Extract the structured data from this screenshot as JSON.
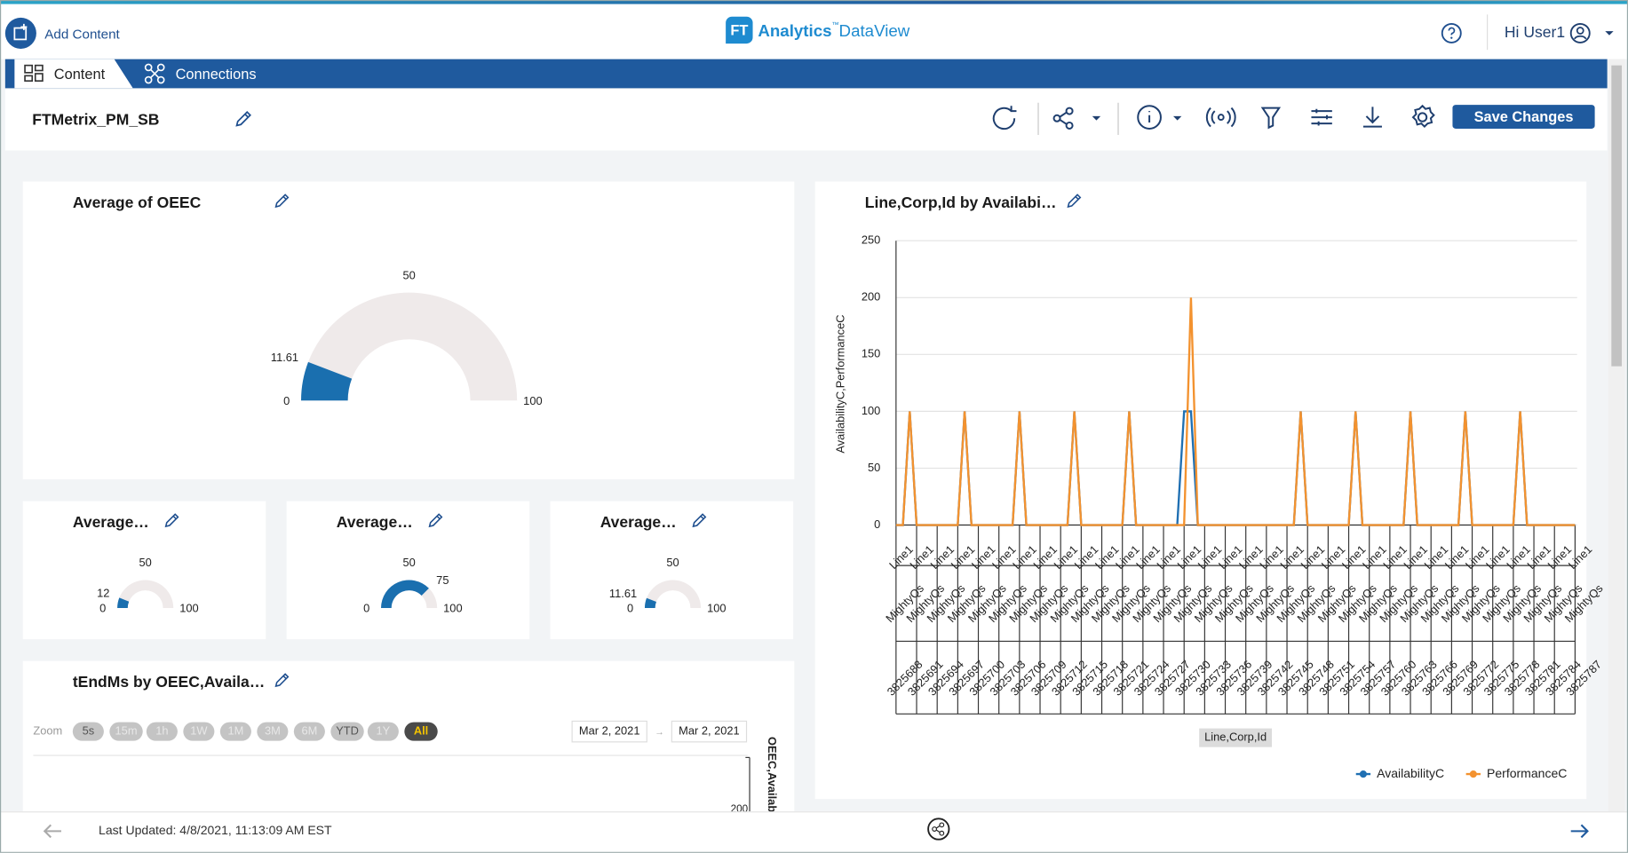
{
  "header": {
    "add_content": "Add Content",
    "logo_badge": "FT",
    "logo_brand": "Analytics",
    "logo_tm": "™",
    "logo_product": "DataView",
    "user_greeting": "Hi User1"
  },
  "tabs": [
    "Content",
    "Connections"
  ],
  "dashboard": {
    "title": "FTMetrix_PM_SB",
    "save_button": "Save Changes"
  },
  "gauges": [
    {
      "title": "Average of OEEC",
      "min": 0,
      "mid": 50,
      "max": 100,
      "value": 11.61,
      "color": "#1a6faf",
      "track_color": "#efeaea"
    },
    {
      "title": "Average…",
      "min": 0,
      "mid": 50,
      "max": 100,
      "value": 12,
      "color": "#1a6faf",
      "track_color": "#efeaea"
    },
    {
      "title": "Average…",
      "min": 0,
      "mid": 50,
      "max": 100,
      "value": 75,
      "color": "#1a6faf",
      "track_color": "#efeaea"
    },
    {
      "title": "Average…",
      "min": 0,
      "mid": 50,
      "max": 100,
      "value": 11.61,
      "color": "#1a6faf",
      "track_color": "#efeaea"
    }
  ],
  "chart_data": {
    "type": "line",
    "title": "Line,Corp,Id by Availabi…",
    "x_label": "Line,Corp,Id",
    "y_label": "AvailabilityC,PerformanceC",
    "categories": [
      [
        "Line1",
        "MightyQs",
        "3825688"
      ],
      null,
      null,
      [
        "Line1",
        "MightyQs",
        "3825691"
      ],
      null,
      null,
      [
        "Line1",
        "MightyQs",
        "3825694"
      ],
      null,
      null,
      [
        "Line1",
        "MightyQs",
        "3825697"
      ],
      null,
      null,
      [
        "Line1",
        "MightyQs",
        "3825700"
      ],
      null,
      null,
      [
        "Line1",
        "MightyQs",
        "3825703"
      ],
      null,
      null,
      [
        "Line1",
        "MightyQs",
        "3825706"
      ],
      null,
      null,
      [
        "Line1",
        "MightyQs",
        "3825709"
      ],
      null,
      null,
      [
        "Line1",
        "MightyQs",
        "3825712"
      ],
      null,
      null,
      [
        "Line1",
        "MightyQs",
        "3825715"
      ],
      null,
      null,
      [
        "Line1",
        "MightyQs",
        "3825718"
      ],
      null,
      null,
      [
        "Line1",
        "MightyQs",
        "3825721"
      ],
      null,
      null,
      [
        "Line1",
        "MightyQs",
        "3825724"
      ],
      null,
      null,
      [
        "Line1",
        "MightyQs",
        "3825727"
      ],
      null,
      null,
      [
        "Line1",
        "MightyQs",
        "3825730"
      ],
      null,
      null,
      [
        "Line1",
        "MightyQs",
        "3825733"
      ],
      null,
      null,
      [
        "Line1",
        "MightyQs",
        "3825736"
      ],
      null,
      null,
      [
        "Line1",
        "MightyQs",
        "3825739"
      ],
      null,
      null,
      [
        "Line1",
        "MightyQs",
        "3825742"
      ],
      null,
      null,
      [
        "Line1",
        "MightyQs",
        "3825745"
      ],
      null,
      null,
      [
        "Line1",
        "MightyQs",
        "3825748"
      ],
      null,
      null,
      [
        "Line1",
        "MightyQs",
        "3825751"
      ],
      null,
      null,
      [
        "Line1",
        "MightyQs",
        "3825754"
      ],
      null,
      null,
      [
        "Line1",
        "MightyQs",
        "3825757"
      ],
      null,
      null,
      [
        "Line1",
        "MightyQs",
        "3825760"
      ],
      null,
      null,
      [
        "Line1",
        "MightyQs",
        "3825763"
      ],
      null,
      null,
      [
        "Line1",
        "MightyQs",
        "3825766"
      ],
      null,
      null,
      [
        "Line1",
        "MightyQs",
        "3825769"
      ],
      null,
      null,
      [
        "Line1",
        "MightyQs",
        "3825772"
      ],
      null,
      null,
      [
        "Line1",
        "MightyQs",
        "3825775"
      ],
      null,
      null,
      [
        "Line1",
        "MightyQs",
        "3825778"
      ],
      null,
      null,
      [
        "Line1",
        "MightyQs",
        "3825781"
      ],
      null,
      null,
      [
        "Line1",
        "MightyQs",
        "3825784"
      ],
      null,
      null,
      [
        "Line1",
        "MightyQs",
        "3825787"
      ]
    ],
    "series": [
      {
        "name": "AvailabilityC",
        "color": "#1f6fb2",
        "values": [
          0,
          0,
          100,
          0,
          0,
          0,
          0,
          0,
          0,
          0,
          100,
          0,
          0,
          0,
          0,
          0,
          0,
          0,
          100,
          0,
          0,
          0,
          0,
          0,
          0,
          0,
          100,
          0,
          0,
          0,
          0,
          0,
          0,
          0,
          100,
          0,
          0,
          0,
          0,
          0,
          0,
          0,
          100,
          100,
          0,
          0,
          0,
          0,
          0,
          0,
          0,
          0,
          0,
          0,
          0,
          0,
          0,
          0,
          0,
          100,
          0,
          0,
          0,
          0,
          0,
          0,
          0,
          100,
          0,
          0,
          0,
          0,
          0,
          0,
          0,
          100,
          0,
          0,
          0,
          0,
          0,
          0,
          0,
          100,
          0,
          0,
          0,
          0,
          0,
          0,
          0,
          100,
          0,
          0,
          0,
          0,
          0,
          0,
          0,
          0
        ]
      },
      {
        "name": "PerformanceC",
        "color": "#f3922f",
        "values": [
          0,
          0,
          100,
          0,
          0,
          0,
          0,
          0,
          0,
          0,
          100,
          0,
          0,
          0,
          0,
          0,
          0,
          0,
          100,
          0,
          0,
          0,
          0,
          0,
          0,
          0,
          100,
          0,
          0,
          0,
          0,
          0,
          0,
          0,
          100,
          0,
          0,
          0,
          0,
          0,
          0,
          0,
          0,
          200,
          0,
          0,
          0,
          0,
          0,
          0,
          0,
          0,
          0,
          0,
          0,
          0,
          0,
          0,
          0,
          100,
          0,
          0,
          0,
          0,
          0,
          0,
          0,
          100,
          0,
          0,
          0,
          0,
          0,
          0,
          0,
          100,
          0,
          0,
          0,
          0,
          0,
          0,
          0,
          100,
          0,
          0,
          0,
          0,
          0,
          0,
          0,
          100,
          0,
          0,
          0,
          0,
          0,
          0,
          0,
          0
        ]
      }
    ],
    "ylim": [
      0,
      250
    ],
    "yticks": [
      0,
      50,
      100,
      150,
      200,
      250
    ],
    "grid": true,
    "legend": "bottom-right"
  },
  "timeline": {
    "title": "tEndMs by OEEC,Availa…",
    "zoom_label": "Zoom",
    "zoom_buttons": [
      "5s",
      "15m",
      "1h",
      "1W",
      "1M",
      "3M",
      "6M",
      "YTD",
      "1Y",
      "All"
    ],
    "selected": "All",
    "from": "Mar 2, 2021",
    "separator": "→",
    "to": "Mar 2, 2021",
    "axis_label": "OEEC,Availabil",
    "visible_tick": 200
  },
  "footer": {
    "last_updated": "Last Updated: 4/8/2021, 11:13:09 AM EST"
  }
}
